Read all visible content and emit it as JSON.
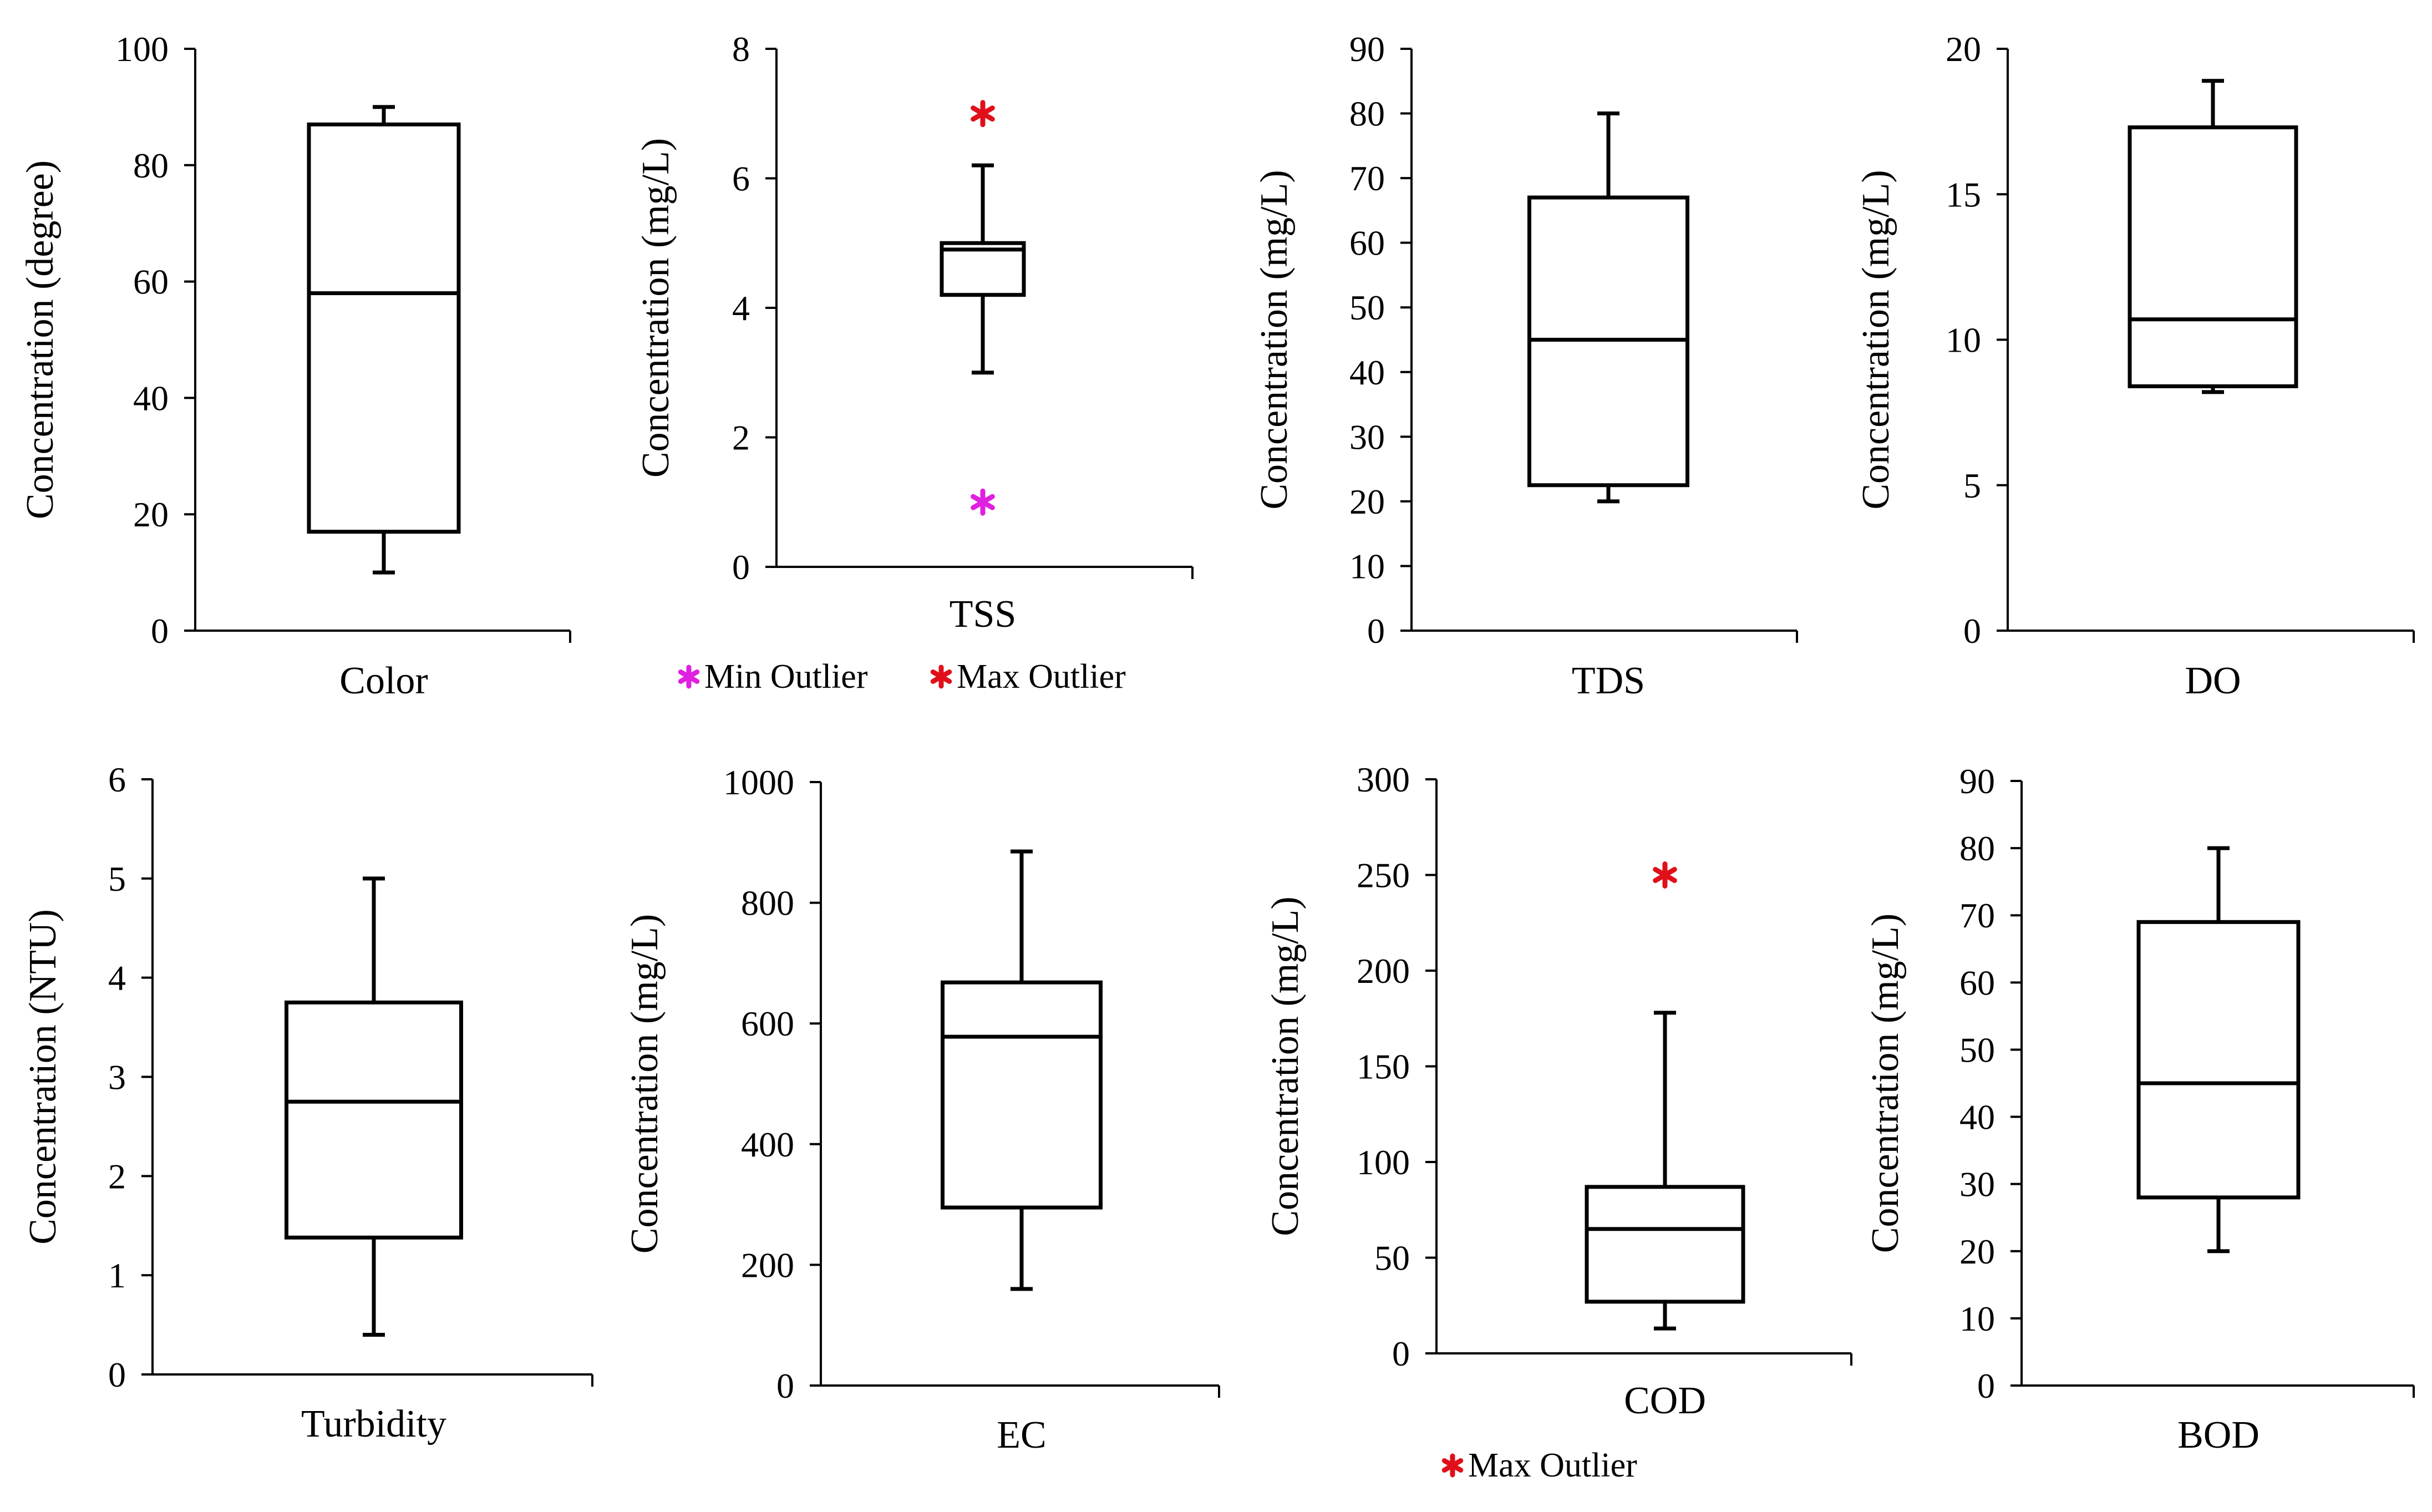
{
  "chart_data": [
    {
      "type": "box",
      "id": "color",
      "xlabel": "Color",
      "ylabel": "Concentration (degree)",
      "ylim": [
        0,
        100
      ],
      "ticks": [
        0,
        20,
        40,
        60,
        80,
        100
      ],
      "whisker_min": 10,
      "q1": 17,
      "median": 58,
      "q3": 87,
      "whisker_max": 90,
      "outliers_min": [],
      "outliers_max": [],
      "legend": []
    },
    {
      "type": "box",
      "id": "tss",
      "xlabel": "TSS",
      "ylabel": "Concentration (mg/L)",
      "ylim": [
        0,
        8
      ],
      "ticks": [
        0,
        2,
        4,
        6,
        8
      ],
      "whisker_min": 3,
      "q1": 4.2,
      "median": 4.9,
      "q3": 5,
      "whisker_max": 6.2,
      "outliers_min": [
        1
      ],
      "outliers_max": [
        7
      ],
      "legend": [
        {
          "label": "Min Outlier",
          "color": "#E020E0",
          "kind": "min"
        },
        {
          "label": "Max Outlier",
          "color": "#E0101A",
          "kind": "max"
        }
      ]
    },
    {
      "type": "box",
      "id": "tds",
      "xlabel": "TDS",
      "ylabel": "Concentration (mg/L)",
      "ylim": [
        0,
        90
      ],
      "ticks": [
        0,
        10,
        20,
        30,
        40,
        50,
        60,
        70,
        80,
        90
      ],
      "whisker_min": 20,
      "q1": 22.5,
      "median": 45,
      "q3": 67,
      "whisker_max": 80,
      "outliers_min": [],
      "outliers_max": [],
      "legend": []
    },
    {
      "type": "box",
      "id": "do",
      "xlabel": "DO",
      "ylabel": "Concentration (mg/L)",
      "ylim": [
        0,
        20
      ],
      "ticks": [
        0,
        5,
        10,
        15,
        20
      ],
      "whisker_min": 8.2,
      "q1": 8.4,
      "median": 10.7,
      "q3": 17.3,
      "whisker_max": 18.9,
      "outliers_min": [],
      "outliers_max": [],
      "legend": []
    },
    {
      "type": "box",
      "id": "turbidity",
      "xlabel": "Turbidity",
      "ylabel": "Concentration (NTU)",
      "ylim": [
        0,
        6
      ],
      "ticks": [
        0,
        1,
        2,
        3,
        4,
        5,
        6
      ],
      "whisker_min": 0.4,
      "q1": 1.38,
      "median": 2.75,
      "q3": 3.75,
      "whisker_max": 5,
      "outliers_min": [],
      "outliers_max": [],
      "legend": []
    },
    {
      "type": "box",
      "id": "ec",
      "xlabel": "EC",
      "ylabel": "Concentration (mg/L)",
      "ylim": [
        0,
        1000
      ],
      "ticks": [
        0,
        200,
        400,
        600,
        800,
        1000
      ],
      "whisker_min": 160,
      "q1": 295,
      "median": 578,
      "q3": 668,
      "whisker_max": 885,
      "outliers_min": [],
      "outliers_max": [],
      "legend": []
    },
    {
      "type": "box",
      "id": "cod",
      "xlabel": "COD",
      "ylabel": "Concentration (mg/L)",
      "ylim": [
        0,
        300
      ],
      "ticks": [
        0,
        50,
        100,
        150,
        200,
        250,
        300
      ],
      "whisker_min": 13,
      "q1": 27,
      "median": 65,
      "q3": 87,
      "whisker_max": 178,
      "outliers_min": [],
      "outliers_max": [
        250
      ],
      "legend": [
        {
          "label": "Max Outlier",
          "color": "#E0101A",
          "kind": "max"
        }
      ]
    },
    {
      "type": "box",
      "id": "bod",
      "xlabel": "BOD",
      "ylabel": "Concentration (mg/L)",
      "ylim": [
        0,
        90
      ],
      "ticks": [
        0,
        10,
        20,
        30,
        40,
        50,
        60,
        70,
        80,
        90
      ],
      "whisker_min": 20,
      "q1": 28,
      "median": 45,
      "q3": 69,
      "whisker_max": 80,
      "outliers_min": [],
      "outliers_max": [],
      "legend": []
    }
  ],
  "colors": {
    "axis": "#000000",
    "box": "#000000",
    "min_outlier": "#E020E0",
    "max_outlier": "#E0101A"
  }
}
